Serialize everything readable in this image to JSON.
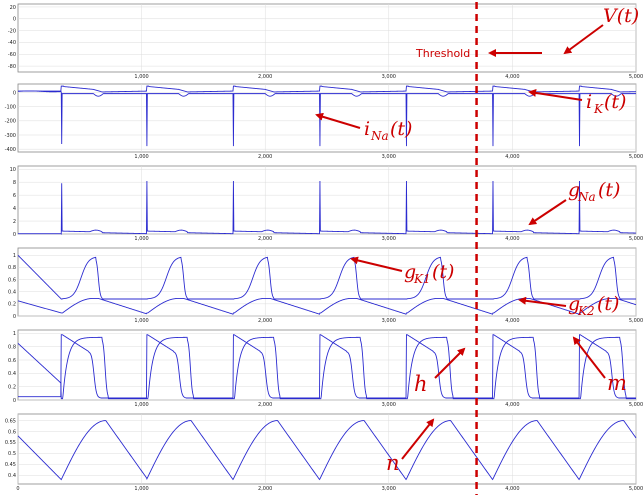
{
  "chart_data": [
    {
      "type": "line",
      "panel": "V",
      "ylim": [
        -90,
        25
      ],
      "yticks": [
        20,
        0,
        -20,
        -40,
        -60,
        -80
      ],
      "xticks": [
        1000,
        2000,
        3000,
        4000,
        5000
      ],
      "xlim": [
        0,
        5000
      ],
      "series": [
        {
          "shape": "action-potential",
          "color": "#2b2bd0"
        }
      ]
    },
    {
      "type": "line",
      "panel": "currents",
      "ylim": [
        -420,
        60
      ],
      "yticks": [
        0,
        -100,
        -200,
        -300,
        -400
      ],
      "xticks": [
        1000,
        2000,
        3000,
        4000,
        5000
      ],
      "xlim": [
        0,
        5000
      ],
      "series": [
        {
          "shape": "iNa",
          "color": "#2b2bd0"
        },
        {
          "shape": "iK",
          "color": "#2b2bd0"
        }
      ]
    },
    {
      "type": "line",
      "panel": "gNa",
      "ylim": [
        0,
        10.5
      ],
      "yticks": [
        10,
        8,
        6,
        4,
        2,
        0
      ],
      "xticks": [
        1000,
        2000,
        3000,
        4000,
        5000
      ],
      "xlim": [
        0,
        5000
      ],
      "series": [
        {
          "shape": "gNa",
          "color": "#2b2bd0"
        }
      ]
    },
    {
      "type": "line",
      "panel": "gK",
      "ylim": [
        0,
        1.12
      ],
      "yticks": [
        1,
        0.8,
        0.6,
        0.4,
        0.2,
        0
      ],
      "xticks": [
        1000,
        2000,
        3000,
        4000,
        5000
      ],
      "xlim": [
        0,
        5000
      ],
      "series": [
        {
          "shape": "gK1",
          "color": "#2b2bd0"
        },
        {
          "shape": "gK2",
          "color": "#2b2bd0"
        }
      ]
    },
    {
      "type": "line",
      "panel": "gates_hm",
      "ylim": [
        0,
        1.05
      ],
      "yticks": [
        1,
        0.8,
        0.6,
        0.4,
        0.2,
        0
      ],
      "xticks": [
        1000,
        2000,
        3000,
        4000,
        5000
      ],
      "xlim": [
        0,
        5000
      ],
      "series": [
        {
          "shape": "h",
          "color": "#2b2bd0"
        },
        {
          "shape": "m",
          "color": "#2b2bd0"
        }
      ]
    },
    {
      "type": "line",
      "panel": "gate_n",
      "ylim": [
        0.36,
        0.68
      ],
      "yticks": [
        0.65,
        0.6,
        0.55,
        0.5,
        0.45,
        0.4
      ],
      "xticks": [
        0,
        1000,
        2000,
        3000,
        4000,
        5000
      ],
      "xlim": [
        0,
        5000
      ],
      "series": [
        {
          "shape": "n",
          "color": "#2b2bd0"
        }
      ]
    }
  ],
  "beats": [
    0,
    350,
    1040,
    1740,
    2440,
    3140,
    3840,
    4540
  ],
  "threshold_x": 3710,
  "colors": {
    "trace": "#2b2bd0",
    "annotation": "#cc0000",
    "grid": "#dcdcdc",
    "frame": "#888888"
  },
  "annotations": {
    "threshold": "Threshold",
    "V": "V(t)",
    "iNa": "i",
    "iNa_sub": "Na",
    "iNa_tail": "(t)",
    "iK": "i",
    "iK_sub": "K",
    "iK_tail": "(t)",
    "gNa": "g",
    "gNa_sub": "Na",
    "gNa_tail": "(t)",
    "gK1": "g",
    "gK1_sub": "K1",
    "gK1_tail": "(t)",
    "gK2": "g",
    "gK2_sub": "K2",
    "gK2_tail": "(t)",
    "h": "h",
    "m": "m",
    "n": "n"
  }
}
